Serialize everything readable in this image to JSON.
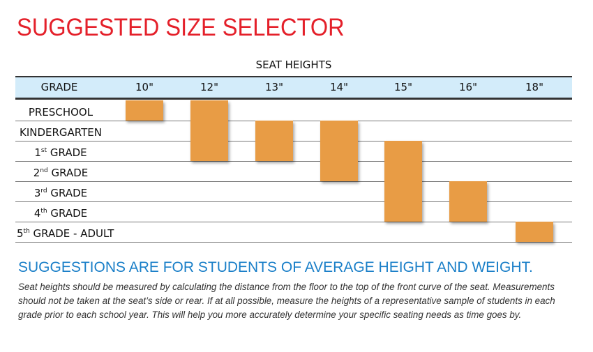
{
  "chart_data": {
    "type": "table",
    "title": "SUGGESTED SIZE SELECTOR",
    "column_group_label": "SEAT HEIGHTS",
    "row_header": "GRADE",
    "columns": [
      "10\"",
      "12\"",
      "13\"",
      "14\"",
      "15\"",
      "16\"",
      "18\""
    ],
    "rows": [
      {
        "label": "PRESCHOOL",
        "ord": "",
        "suffix": ""
      },
      {
        "label": "KINDERGARTEN",
        "ord": "",
        "suffix": ""
      },
      {
        "label": "1",
        "ord": "st",
        "suffix": " GRADE"
      },
      {
        "label": "2",
        "ord": "nd",
        "suffix": " GRADE"
      },
      {
        "label": "3",
        "ord": "rd",
        "suffix": " GRADE"
      },
      {
        "label": "4",
        "ord": "th",
        "suffix": " GRADE"
      },
      {
        "label": "5",
        "ord": "th",
        "suffix": " GRADE - ADULT"
      }
    ],
    "ranges": [
      {
        "seat_height": "10\"",
        "from_row": "PRESCHOOL",
        "to_row": "PRESCHOOL",
        "start": 0,
        "end": 0
      },
      {
        "seat_height": "12\"",
        "from_row": "PRESCHOOL",
        "to_row": "1st GRADE",
        "start": 0,
        "end": 2
      },
      {
        "seat_height": "13\"",
        "from_row": "KINDERGARTEN",
        "to_row": "1st GRADE",
        "start": 1,
        "end": 2
      },
      {
        "seat_height": "14\"",
        "from_row": "KINDERGARTEN",
        "to_row": "2nd GRADE",
        "start": 1,
        "end": 3
      },
      {
        "seat_height": "15\"",
        "from_row": "1st GRADE",
        "to_row": "4th GRADE",
        "start": 2,
        "end": 5
      },
      {
        "seat_height": "16\"",
        "from_row": "3rd GRADE",
        "to_row": "4th GRADE",
        "start": 4,
        "end": 5
      },
      {
        "seat_height": "18\"",
        "from_row": "5th GRADE - ADULT",
        "to_row": "5th GRADE - ADULT",
        "start": 6,
        "end": 6
      }
    ]
  },
  "colors": {
    "title": "#e4202a",
    "header_band": "#d3ecfa",
    "bar": "#e89c45",
    "subtitle": "#1a7fc8"
  },
  "subtitle": "SUGGESTIONS ARE FOR STUDENTS OF AVERAGE HEIGHT AND WEIGHT.",
  "note": "Seat heights should be measured by calculating the distance from the floor to the top of the front curve of the seat. Measurements should not be taken at the seat’s side or rear.  If at all possible, measure the heights of a representative sample of students in each grade prior to each school year.  This will help you more accurately determine your specific seating needs as time goes by."
}
